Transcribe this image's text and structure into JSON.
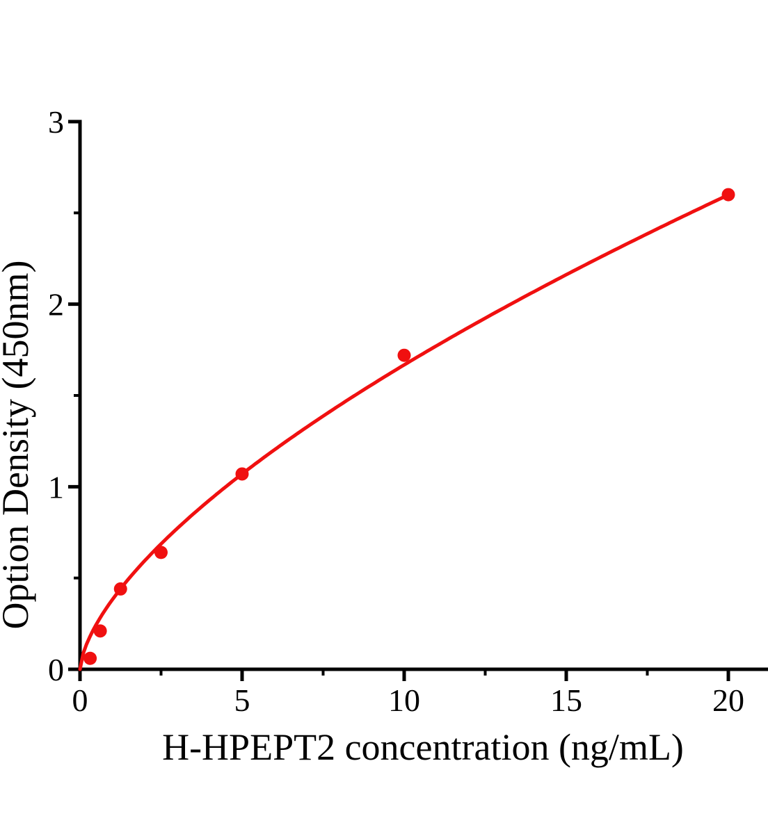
{
  "page": {
    "description": "ELISA standard curve plot",
    "background_color": "#ffffff"
  },
  "chart_data": {
    "type": "scatter",
    "title": "",
    "xlabel": "H-HPEPT2 concentration（ng/mL)",
    "ylabel": "Option Density（450nm）",
    "points": [
      {
        "x": 0.313,
        "y": 0.06
      },
      {
        "x": 0.625,
        "y": 0.21
      },
      {
        "x": 1.25,
        "y": 0.44
      },
      {
        "x": 2.5,
        "y": 0.64
      },
      {
        "x": 5,
        "y": 1.07
      },
      {
        "x": 10,
        "y": 1.72
      },
      {
        "x": 20,
        "y": 2.6
      }
    ],
    "fit_curve": {
      "type": "power",
      "a": 0.382,
      "b": 0.64,
      "x_start": 0,
      "x_end": 20,
      "description": "smooth fitted curve through standard points, y = 0.382 * x^0.64"
    },
    "xlim": [
      0,
      21.2
    ],
    "ylim": [
      0,
      3
    ],
    "x_major_ticks": {
      "values": [
        0,
        5,
        10,
        15,
        20
      ],
      "labels": [
        "0",
        "5",
        "10",
        "15",
        "20"
      ]
    },
    "x_minor_ticks": [
      2.5,
      7.5,
      12.5,
      17.5
    ],
    "y_major_ticks": {
      "values": [
        0,
        1,
        2,
        3
      ],
      "labels": [
        "0",
        "1",
        "2",
        "3"
      ]
    },
    "y_minor_ticks": [
      0.5,
      1.5,
      2.5
    ],
    "grid": false,
    "legend": false,
    "marker": "filled-circle",
    "colors": {
      "curve": "#f01010",
      "marker": "#f01010",
      "axis": "#000000",
      "text": "#000000",
      "background": "#ffffff"
    }
  }
}
